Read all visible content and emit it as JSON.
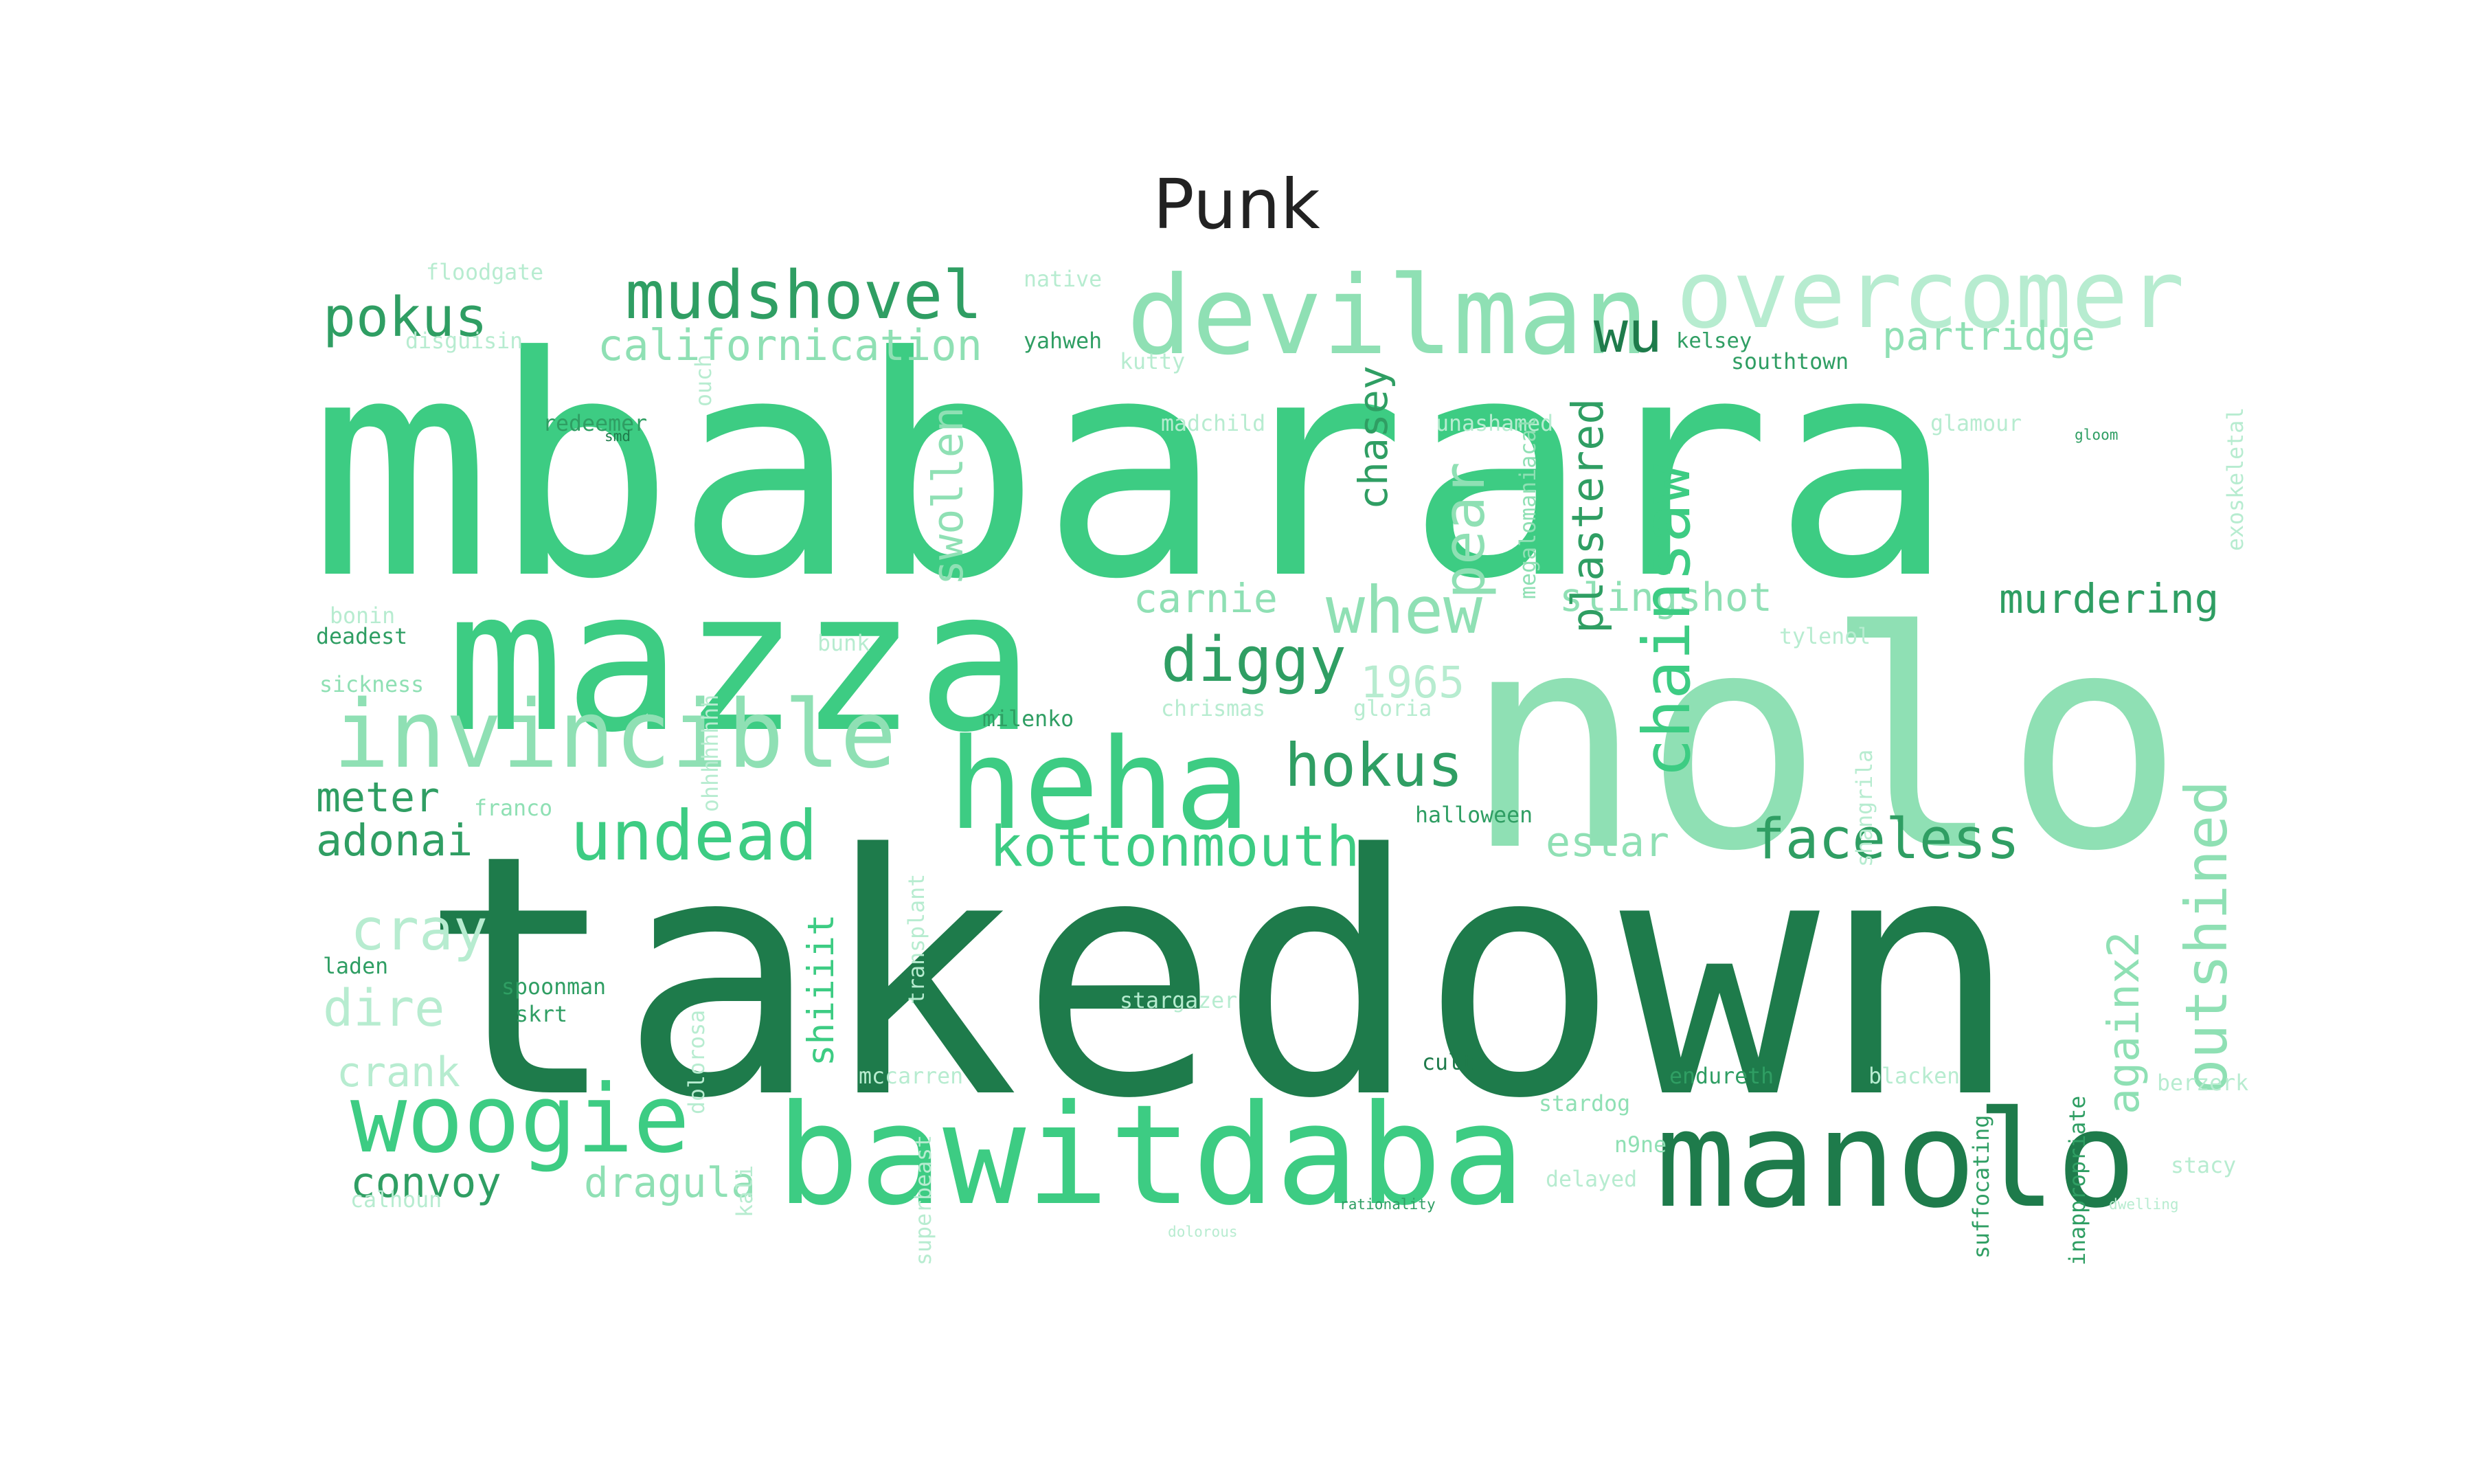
{
  "title": "Punk",
  "palette": {
    "dark": "#1e7b4b",
    "mid": "#2f9e63",
    "main": "#3dcc83",
    "light": "#8fe0b4",
    "pale": "#b7ecd0"
  },
  "words": [
    "mbabarara",
    "nolo",
    "takedown",
    "mazza",
    "heha",
    "bawitdaba",
    "manolo",
    "invincible",
    "devilman",
    "overcomer",
    "mudshovel",
    "californication",
    "pokus",
    "wu",
    "partridge",
    "woogie",
    "undead",
    "kottonmouth",
    "hokus",
    "diggy",
    "whew",
    "carnie",
    "slingshot",
    "murdering",
    "pear",
    "chasey",
    "swollen",
    "plastered",
    "chainsaw",
    "outshined",
    "againx2",
    "faceless",
    "estar",
    "1965",
    "cray",
    "dire",
    "crank",
    "convoy",
    "dragula",
    "meter",
    "adonai",
    "shiiiit",
    "floodgate",
    "disguisin",
    "native",
    "yahweh",
    "kutty",
    "kelsey",
    "southtown",
    "redeemer",
    "madchild",
    "unashamed",
    "megalomaniacal",
    "glamour",
    "exoskeletal",
    "bonin",
    "deadest",
    "sickness",
    "bunk",
    "tylenol",
    "chrismas",
    "gloria",
    "milenko",
    "shangrila",
    "halloween",
    "franco",
    "laden",
    "spoonman",
    "skrt",
    "dolorosa",
    "transplant",
    "stargazer",
    "cult",
    "endureth",
    "blacken",
    "berzerk",
    "stardog",
    "n9ne",
    "delayed",
    "stacy",
    "mccarren",
    "superbeast",
    "calhoun",
    "kali",
    "rationality",
    "dwelling",
    "inappropriate",
    "suffocating",
    "ohhhhhhhh",
    "ouch",
    "smd",
    "gloom",
    "dolorous"
  ]
}
